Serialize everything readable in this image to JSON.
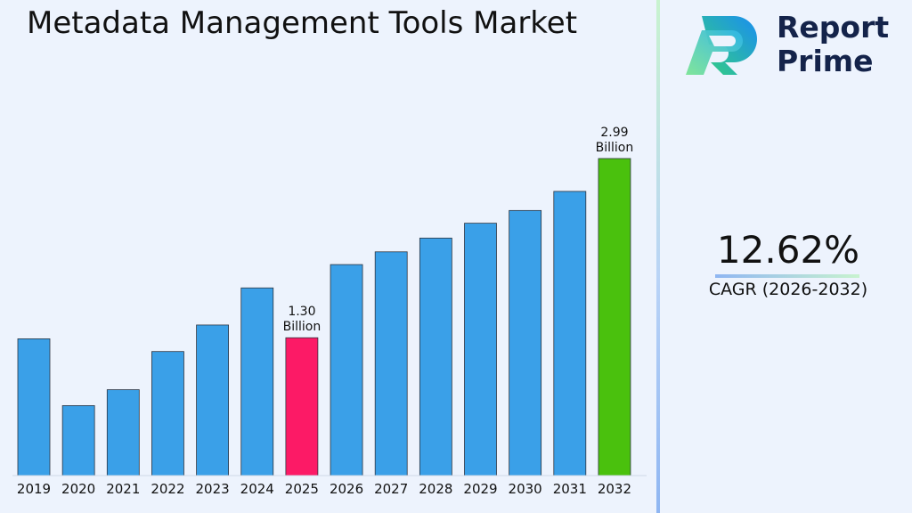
{
  "title": "Metadata Management Tools Market",
  "brand": {
    "line1": "Report",
    "line2": "Prime"
  },
  "cagr": {
    "value": "12.62%",
    "label": "CAGR (2026-2032)"
  },
  "colors": {
    "bar": "#3aa0e8",
    "highlight_base": "#fc1a66",
    "highlight_end": "#4ac10d",
    "background": "#edf3fd"
  },
  "chart_data": {
    "type": "bar",
    "categories": [
      "2019",
      "2020",
      "2021",
      "2022",
      "2023",
      "2024",
      "2025",
      "2026",
      "2027",
      "2028",
      "2029",
      "2030",
      "2031",
      "2032"
    ],
    "values": [
      1.29,
      0.66,
      0.81,
      1.17,
      1.42,
      1.77,
      1.3,
      1.99,
      2.11,
      2.24,
      2.38,
      2.5,
      2.68,
      2.99
    ],
    "annotations": [
      {
        "category": "2025",
        "text": [
          "1.30",
          "Billion"
        ]
      },
      {
        "category": "2032",
        "text": [
          "2.99",
          "Billion"
        ]
      }
    ],
    "highlight": {
      "2025": "highlight_base",
      "2032": "highlight_end"
    },
    "ylim": [
      0,
      3.0
    ],
    "grid": false,
    "legend": "none"
  }
}
